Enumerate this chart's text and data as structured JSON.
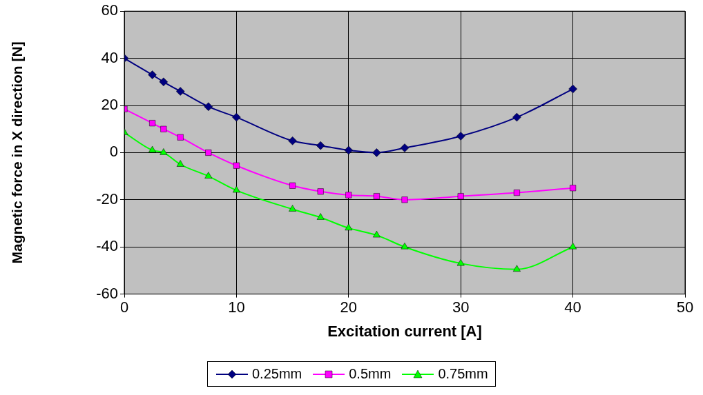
{
  "chart_data": {
    "type": "line",
    "xlabel": "Excitation current [A]",
    "ylabel": "Magnetic force in X direction [N]",
    "x": [
      0,
      2.5,
      3.5,
      5,
      7.5,
      10,
      15,
      17.5,
      20,
      22.5,
      25,
      30,
      35,
      40
    ],
    "series": [
      {
        "name": "0.25mm",
        "color": "#000080",
        "marker": "diamond",
        "values": [
          40,
          33,
          30,
          26,
          19.5,
          15,
          5,
          3,
          1,
          0,
          2,
          7,
          15,
          27
        ]
      },
      {
        "name": "0.5mm",
        "color": "#ff00ff",
        "marker": "square",
        "values": [
          18.5,
          12.5,
          10,
          6.5,
          0,
          -5.5,
          -14,
          -16.5,
          -18,
          -18.5,
          -20,
          -18.5,
          -17,
          -15
        ]
      },
      {
        "name": "0.75mm",
        "color": "#00ff00",
        "marker": "triangle",
        "values": [
          8.5,
          1,
          0,
          -5,
          -10,
          -16,
          -24,
          -27.5,
          -32,
          -35,
          -40,
          -47,
          -49.5,
          -40
        ]
      }
    ],
    "xlim": [
      0,
      50
    ],
    "xticks": [
      0,
      10,
      20,
      30,
      40,
      50
    ],
    "ylim": [
      -60,
      60
    ],
    "yticks": [
      -60,
      -40,
      -20,
      0,
      20,
      40,
      60
    ],
    "grid": true,
    "legend": "bottom"
  }
}
